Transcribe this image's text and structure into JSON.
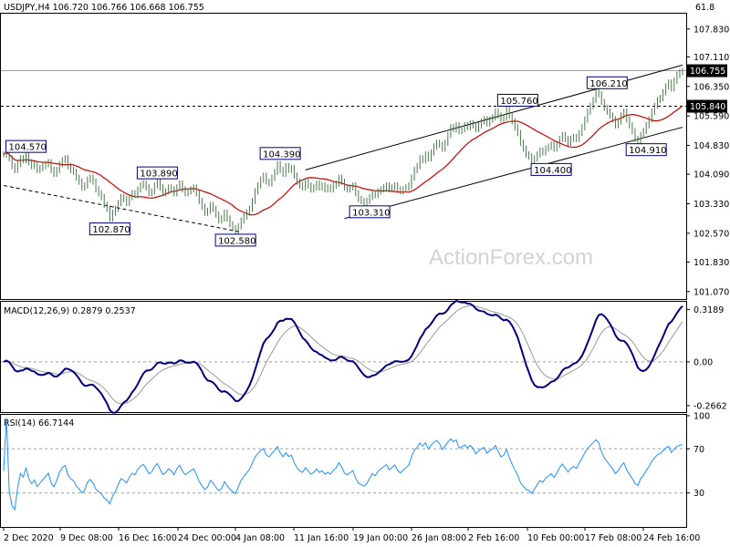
{
  "header": {
    "price_title": "USDJPY,H4  106.720 106.766 106.668 106.755",
    "corner_value": "61.8",
    "macd_title": "MACD(12,26,9) 0.2879 0.2537",
    "rsi_title": "RSI(14) 66.7144"
  },
  "watermark": "ActionForex.com",
  "colors": {
    "price_line": "#4a7a4a",
    "moving_average": "#cc0000",
    "macd_line": "#000080",
    "signal_line": "#999999",
    "rsi_line": "#1e90ff",
    "annotation_border": "#000080",
    "grid": "#d0d0d0",
    "price_marker_bg": "#000000"
  },
  "chart_data": [
    {
      "type": "line",
      "panel": "price",
      "y_axis_ticks": [
        "107.830",
        "107.110",
        "106.350",
        "105.590",
        "104.830",
        "104.090",
        "103.330",
        "102.570",
        "101.830",
        "101.070"
      ],
      "ylim": [
        100.9,
        108.2
      ],
      "current_price": "106.755",
      "level_line": "105.840",
      "annotations": [
        {
          "label": "104.570",
          "bar": 8,
          "value": 104.57
        },
        {
          "label": "103.890",
          "bar": 55,
          "value": 103.89
        },
        {
          "label": "102.870",
          "bar": 38,
          "value": 102.87
        },
        {
          "label": "102.580",
          "bar": 83,
          "value": 102.58
        },
        {
          "label": "104.390",
          "bar": 99,
          "value": 104.39
        },
        {
          "label": "103.310",
          "bar": 131,
          "value": 103.31
        },
        {
          "label": "105.760",
          "bar": 184,
          "value": 105.76
        },
        {
          "label": "104.400",
          "bar": 196,
          "value": 104.4
        },
        {
          "label": "106.210",
          "bar": 216,
          "value": 106.21
        },
        {
          "label": "104.910",
          "bar": 230,
          "value": 104.91
        }
      ],
      "trend_lines": [
        {
          "name": "channel-upper",
          "from": [
            108,
            104.2
          ],
          "to": [
            250,
            106.9
          ]
        },
        {
          "name": "channel-lower",
          "from": [
            122,
            102.95
          ],
          "to": [
            250,
            105.3
          ]
        },
        {
          "name": "downtrend-support",
          "from": [
            0,
            103.8
          ],
          "to": [
            85,
            102.6
          ]
        }
      ],
      "close": [
        104.6,
        104.7,
        104.5,
        104.3,
        104.2,
        104.35,
        104.5,
        104.45,
        104.57,
        104.4,
        104.3,
        104.35,
        104.2,
        104.25,
        104.3,
        104.35,
        104.4,
        104.2,
        104.1,
        104.2,
        104.35,
        104.45,
        104.5,
        104.3,
        104.2,
        104.15,
        104.0,
        103.9,
        103.75,
        103.8,
        103.95,
        104.0,
        103.9,
        103.7,
        103.6,
        103.5,
        103.3,
        103.2,
        102.95,
        103.1,
        103.2,
        103.35,
        103.5,
        103.45,
        103.35,
        103.5,
        103.6,
        103.55,
        103.7,
        103.8,
        103.85,
        103.75,
        103.6,
        103.65,
        103.8,
        103.89,
        103.75,
        103.6,
        103.65,
        103.75,
        103.7,
        103.6,
        103.75,
        103.85,
        103.7,
        103.6,
        103.65,
        103.7,
        103.75,
        103.6,
        103.4,
        103.25,
        103.1,
        103.15,
        103.3,
        103.2,
        103.05,
        102.9,
        102.95,
        103.1,
        102.95,
        102.8,
        102.7,
        102.6,
        102.75,
        102.9,
        103.0,
        103.1,
        103.2,
        103.4,
        103.65,
        103.8,
        103.95,
        104.05,
        103.9,
        103.85,
        104.0,
        104.15,
        104.35,
        104.2,
        104.1,
        104.3,
        104.2,
        104.25,
        104.05,
        103.9,
        103.8,
        103.75,
        103.9,
        103.8,
        103.7,
        103.75,
        103.85,
        103.75,
        103.8,
        103.7,
        103.75,
        103.7,
        103.8,
        103.85,
        104.0,
        103.9,
        103.75,
        103.7,
        103.75,
        103.8,
        103.6,
        103.45,
        103.4,
        103.35,
        103.4,
        103.5,
        103.6,
        103.55,
        103.65,
        103.7,
        103.75,
        103.8,
        103.7,
        103.75,
        103.8,
        103.7,
        103.65,
        103.7,
        103.75,
        103.8,
        104.0,
        104.2,
        104.3,
        104.5,
        104.45,
        104.6,
        104.5,
        104.65,
        104.8,
        104.9,
        104.85,
        104.75,
        104.9,
        105.1,
        105.3,
        105.25,
        105.35,
        105.2,
        105.25,
        105.35,
        105.3,
        105.4,
        105.35,
        105.25,
        105.35,
        105.45,
        105.5,
        105.4,
        105.5,
        105.55,
        105.7,
        105.6,
        105.5,
        105.55,
        105.76,
        105.6,
        105.45,
        105.3,
        105.15,
        104.9,
        104.75,
        104.6,
        104.55,
        104.4,
        104.5,
        104.6,
        104.7,
        104.65,
        104.75,
        104.8,
        104.85,
        104.75,
        104.85,
        105.0,
        105.1,
        105.0,
        104.9,
        105.0,
        105.05,
        105.0,
        105.15,
        105.3,
        105.5,
        105.7,
        105.85,
        106.0,
        106.21,
        106.15,
        105.95,
        105.8,
        105.7,
        105.6,
        105.5,
        105.35,
        105.45,
        105.6,
        105.7,
        105.5,
        105.35,
        105.2,
        105.0,
        104.91,
        105.1,
        105.2,
        105.35,
        105.5,
        105.7,
        105.85,
        106.0,
        106.05,
        106.2,
        106.35,
        106.45,
        106.3,
        106.5,
        106.65,
        106.72,
        106.755
      ]
    },
    {
      "type": "line",
      "panel": "macd",
      "y_axis_ticks": [
        "0.3189",
        "0.00",
        "-0.2662"
      ],
      "ylim": [
        -0.3,
        0.36
      ],
      "current_macd": "0.2879",
      "current_signal": "0.2537"
    },
    {
      "type": "line",
      "panel": "rsi",
      "y_axis_ticks": [
        "100",
        "70",
        "30"
      ],
      "ylim": [
        0,
        100
      ],
      "levels": [
        70,
        30
      ],
      "current_rsi": "66.7144"
    }
  ],
  "x_axis_labels": [
    "2 Dec 2020",
    "9 Dec 08:00",
    "16 Dec 16:00",
    "24 Dec 00:00",
    "4 Jan 08:00",
    "11 Jan 16:00",
    "19 Jan 00:00",
    "26 Jan 08:00",
    "2 Feb 16:00",
    "10 Feb 00:00",
    "17 Feb 08:00",
    "24 Feb 16:00"
  ]
}
